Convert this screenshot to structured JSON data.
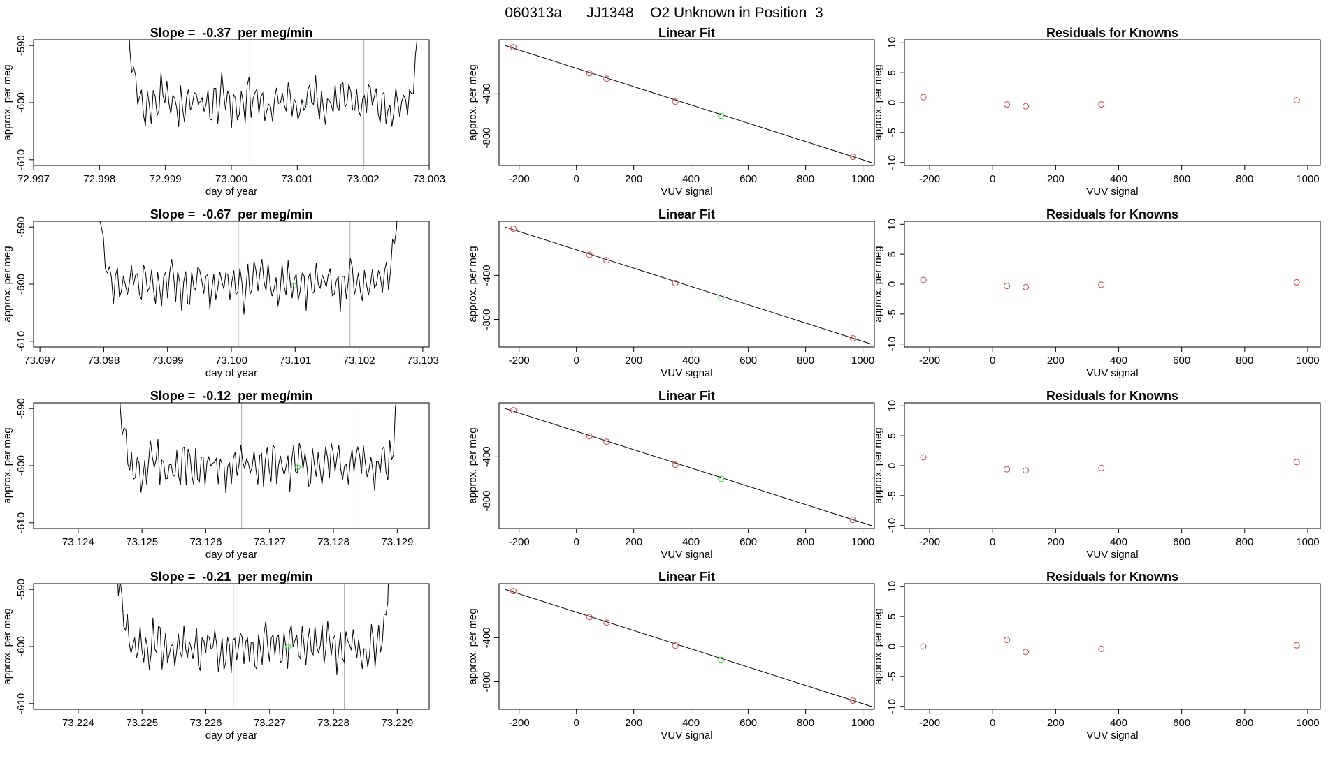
{
  "header": {
    "title": "060313a      JJ1348    O2 Unknown in Position  3"
  },
  "colors": {
    "known": "#cc4444",
    "unknown": "#33dd33",
    "trace": "#000000",
    "marker": "#b0b0b0",
    "fit": "#000000"
  },
  "chart_data": [
    {
      "type": "line",
      "title": "Slope =  -0.37  per meg/min",
      "xlabel": "day of year",
      "ylabel": "approx. per meg",
      "xlim": [
        72.997,
        73.003
      ],
      "ylim": [
        -611,
        -589
      ],
      "xticks": [
        72.997,
        72.998,
        72.999,
        73.0,
        73.001,
        73.002,
        73.003
      ],
      "xtick_labels": [
        "72.997",
        "72.998",
        "72.999",
        "73.000",
        "73.001",
        "73.002",
        "73.003"
      ],
      "yticks": [
        -590,
        -600,
        -610
      ],
      "ytick_labels": [
        "-590",
        "-600",
        "-610"
      ],
      "trace_range": [
        72.9984,
        73.00285
      ],
      "markers": [
        73.00028,
        73.00201
      ],
      "unknown_point": {
        "x": 73.00112,
        "y": -600.1
      }
    },
    {
      "type": "scatter",
      "title": "Linear Fit",
      "xlabel": "VUV signal",
      "ylabel": "approx. per meg",
      "xlim": [
        -270,
        1040
      ],
      "ylim": [
        -1050,
        90
      ],
      "xticks": [
        -200,
        0,
        200,
        400,
        600,
        800,
        1000
      ],
      "xtick_labels": [
        "-200",
        "0",
        "200",
        "400",
        "600",
        "800",
        "1000"
      ],
      "yticks": [
        -400,
        -800
      ],
      "ytick_labels": [
        "-400",
        "-800"
      ],
      "knowns": {
        "x": [
          -220,
          45,
          105,
          345,
          965
        ],
        "y": [
          23,
          -213,
          -263,
          -471,
          -971
        ]
      },
      "unknown": {
        "x": 505,
        "y": -600
      },
      "fit_line": {
        "x": [
          -250,
          1030
        ],
        "y": [
          39,
          -1024
        ]
      }
    },
    {
      "type": "scatter",
      "title": "Residuals for Knowns",
      "xlabel": "VUV signal",
      "ylabel": "approx. per meg",
      "xlim": [
        -280,
        1040
      ],
      "ylim": [
        -10.5,
        10.5
      ],
      "xticks": [
        -200,
        0,
        200,
        400,
        600,
        800,
        1000
      ],
      "xtick_labels": [
        "-200",
        "0",
        "200",
        "400",
        "600",
        "800",
        "1000"
      ],
      "yticks": [
        10,
        5,
        0,
        -5,
        -10
      ],
      "ytick_labels": [
        "10",
        "5",
        "0",
        "-5",
        "-10"
      ],
      "residuals": {
        "x": [
          -220,
          45,
          105,
          345,
          965
        ],
        "y": [
          0.9,
          -0.3,
          -0.6,
          -0.3,
          0.4
        ]
      }
    },
    {
      "type": "line",
      "title": "Slope =  -0.67  per meg/min",
      "xlabel": "day of year",
      "ylabel": "approx. per meg",
      "xlim": [
        73.0969,
        73.1031
      ],
      "ylim": [
        -611,
        -589
      ],
      "xticks": [
        73.097,
        73.098,
        73.099,
        73.1,
        73.101,
        73.102,
        73.103
      ],
      "xtick_labels": [
        "73.097",
        "73.098",
        "73.099",
        "73.100",
        "73.101",
        "73.102",
        "73.103"
      ],
      "yticks": [
        -590,
        -600,
        -610
      ],
      "ytick_labels": [
        "-590",
        "-600",
        "-610"
      ],
      "trace_range": [
        73.0979,
        73.10262
      ],
      "markers": [
        73.10011,
        73.10186
      ],
      "unknown_point": {
        "x": 73.10098,
        "y": -600.3
      }
    },
    {
      "type": "scatter",
      "title": "Linear Fit",
      "xlabel": "VUV signal",
      "ylabel": "approx. per meg",
      "xlim": [
        -270,
        1040
      ],
      "ylim": [
        -1050,
        90
      ],
      "xticks": [
        -200,
        0,
        200,
        400,
        600,
        800,
        1000
      ],
      "xtick_labels": [
        "-200",
        "0",
        "200",
        "400",
        "600",
        "800",
        "1000"
      ],
      "yticks": [
        -400,
        -800
      ],
      "ytick_labels": [
        "-400",
        "-800"
      ],
      "knowns": {
        "x": [
          -220,
          45,
          105,
          345,
          965
        ],
        "y": [
          23,
          -213,
          -263,
          -471,
          -971
        ]
      },
      "unknown": {
        "x": 505,
        "y": -600
      },
      "fit_line": {
        "x": [
          -250,
          1030
        ],
        "y": [
          39,
          -1024
        ]
      }
    },
    {
      "type": "scatter",
      "title": "Residuals for Knowns",
      "xlabel": "VUV signal",
      "ylabel": "approx. per meg",
      "xlim": [
        -280,
        1040
      ],
      "ylim": [
        -10.5,
        10.5
      ],
      "xticks": [
        -200,
        0,
        200,
        400,
        600,
        800,
        1000
      ],
      "xtick_labels": [
        "-200",
        "0",
        "200",
        "400",
        "600",
        "800",
        "1000"
      ],
      "yticks": [
        10,
        5,
        0,
        -5,
        -10
      ],
      "ytick_labels": [
        "10",
        "5",
        "0",
        "-5",
        "-10"
      ],
      "residuals": {
        "x": [
          -220,
          45,
          105,
          345,
          965
        ],
        "y": [
          0.7,
          -0.3,
          -0.5,
          -0.1,
          0.3
        ]
      }
    },
    {
      "type": "line",
      "title": "Slope =  -0.12  per meg/min",
      "xlabel": "day of year",
      "ylabel": "approx. per meg",
      "xlim": [
        73.1233,
        73.1295
      ],
      "ylim": [
        -611,
        -589
      ],
      "xticks": [
        73.124,
        73.125,
        73.126,
        73.127,
        73.128,
        73.129
      ],
      "xtick_labels": [
        "73.124",
        "73.125",
        "73.126",
        "73.127",
        "73.128",
        "73.129"
      ],
      "yticks": [
        -590,
        -600,
        -610
      ],
      "ytick_labels": [
        "-590",
        "-600",
        "-610"
      ],
      "trace_range": [
        73.1246,
        73.12903
      ],
      "markers": [
        73.12656,
        73.12829
      ],
      "unknown_point": {
        "x": 73.12744,
        "y": -600.3
      }
    },
    {
      "type": "scatter",
      "title": "Linear Fit",
      "xlabel": "VUV signal",
      "ylabel": "approx. per meg",
      "xlim": [
        -270,
        1040
      ],
      "ylim": [
        -1050,
        90
      ],
      "xticks": [
        -200,
        0,
        200,
        400,
        600,
        800,
        1000
      ],
      "xtick_labels": [
        "-200",
        "0",
        "200",
        "400",
        "600",
        "800",
        "1000"
      ],
      "yticks": [
        -400,
        -800
      ],
      "ytick_labels": [
        "-400",
        "-800"
      ],
      "knowns": {
        "x": [
          -220,
          45,
          105,
          345,
          965
        ],
        "y": [
          23,
          -213,
          -263,
          -471,
          -971
        ]
      },
      "unknown": {
        "x": 505,
        "y": -600
      },
      "fit_line": {
        "x": [
          -250,
          1030
        ],
        "y": [
          39,
          -1024
        ]
      }
    },
    {
      "type": "scatter",
      "title": "Residuals for Knowns",
      "xlabel": "VUV signal",
      "ylabel": "approx. per meg",
      "xlim": [
        -280,
        1040
      ],
      "ylim": [
        -10.5,
        10.5
      ],
      "xticks": [
        -200,
        0,
        200,
        400,
        600,
        800,
        1000
      ],
      "xtick_labels": [
        "-200",
        "0",
        "200",
        "400",
        "600",
        "800",
        "1000"
      ],
      "yticks": [
        10,
        5,
        0,
        -5,
        -10
      ],
      "ytick_labels": [
        "10",
        "5",
        "0",
        "-5",
        "-10"
      ],
      "residuals": {
        "x": [
          -220,
          45,
          105,
          345,
          965
        ],
        "y": [
          1.4,
          -0.6,
          -0.8,
          -0.4,
          0.6
        ]
      }
    },
    {
      "type": "line",
      "title": "Slope =  -0.21  per meg/min",
      "xlabel": "day of year",
      "ylabel": "approx. per meg",
      "xlim": [
        73.2233,
        73.2295
      ],
      "ylim": [
        -611,
        -589
      ],
      "xticks": [
        73.224,
        73.225,
        73.226,
        73.227,
        73.228,
        73.229
      ],
      "xtick_labels": [
        "73.224",
        "73.225",
        "73.226",
        "73.227",
        "73.228",
        "73.229"
      ],
      "yticks": [
        -590,
        -600,
        -610
      ],
      "ytick_labels": [
        "-590",
        "-600",
        "-610"
      ],
      "trace_range": [
        73.2246,
        73.22888
      ],
      "markers": [
        73.22643,
        73.22817
      ],
      "unknown_point": {
        "x": 73.22729,
        "y": -600.0
      }
    },
    {
      "type": "scatter",
      "title": "Linear Fit",
      "xlabel": "VUV signal",
      "ylabel": "approx. per meg",
      "xlim": [
        -270,
        1040
      ],
      "ylim": [
        -1050,
        90
      ],
      "xticks": [
        -200,
        0,
        200,
        400,
        600,
        800,
        1000
      ],
      "xtick_labels": [
        "-200",
        "0",
        "200",
        "400",
        "600",
        "800",
        "1000"
      ],
      "yticks": [
        -400,
        -800
      ],
      "ytick_labels": [
        "-400",
        "-800"
      ],
      "knowns": {
        "x": [
          -220,
          45,
          105,
          345,
          965
        ],
        "y": [
          23,
          -213,
          -263,
          -471,
          -971
        ]
      },
      "unknown": {
        "x": 505,
        "y": -600
      },
      "fit_line": {
        "x": [
          -250,
          1030
        ],
        "y": [
          39,
          -1024
        ]
      }
    },
    {
      "type": "scatter",
      "title": "Residuals for Knowns",
      "xlabel": "VUV signal",
      "ylabel": "approx. per meg",
      "xlim": [
        -280,
        1040
      ],
      "ylim": [
        -10.5,
        10.5
      ],
      "xticks": [
        -200,
        0,
        200,
        400,
        600,
        800,
        1000
      ],
      "xtick_labels": [
        "-200",
        "0",
        "200",
        "400",
        "600",
        "800",
        "1000"
      ],
      "yticks": [
        10,
        5,
        0,
        -5,
        -10
      ],
      "ytick_labels": [
        "10",
        "5",
        "0",
        "-5",
        "-10"
      ],
      "residuals": {
        "x": [
          -220,
          45,
          105,
          345,
          965
        ],
        "y": [
          0.0,
          1.1,
          -0.9,
          -0.4,
          0.2
        ]
      }
    }
  ]
}
